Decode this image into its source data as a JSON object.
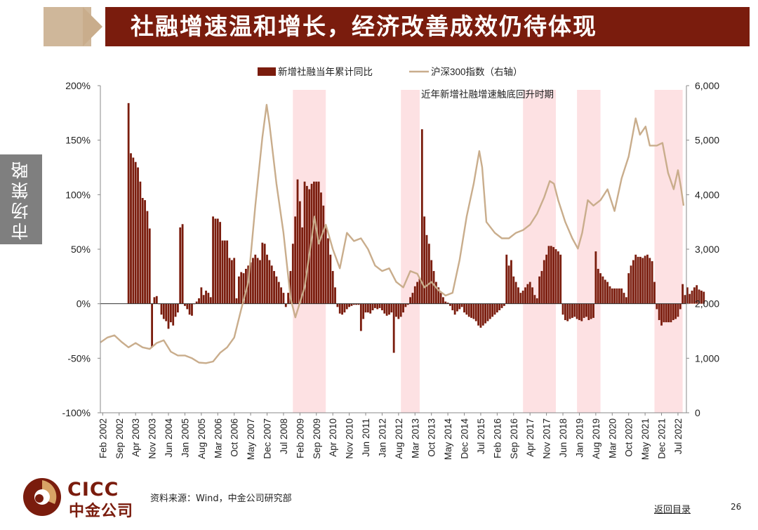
{
  "header": {
    "title": "社融增速温和增长，经济改善成效仍待体现"
  },
  "sidebar": {
    "tab_label": "市场策略"
  },
  "footer": {
    "logo_en": "CICC",
    "logo_cn": "中金公司",
    "source": "资料来源：Wind，中金公司研究部",
    "back_link": "返回目录",
    "page_number": "26"
  },
  "colors": {
    "bar": "#7a1c0d",
    "line": "#c9ad8c",
    "shade": "#fde1e3",
    "title_bg": "#7a1c0d"
  },
  "chart_data": {
    "type": "bar",
    "title": "",
    "legend": [
      {
        "name": "新增社融当年累计同比",
        "kind": "bar"
      },
      {
        "name": "沪深300指数（右轴）",
        "kind": "line"
      },
      {
        "name": "近年新增社融增速触底回升时期",
        "kind": "shade"
      }
    ],
    "legend_position": "top",
    "left_axis": {
      "min": -100,
      "max": 200,
      "step": 50,
      "ticks": [
        "-100%",
        "-50%",
        "0%",
        "50%",
        "100%",
        "150%",
        "200%"
      ]
    },
    "right_axis": {
      "min": 0,
      "max": 6000,
      "step": 1000,
      "ticks": [
        "0",
        "1,000",
        "2,000",
        "3,000",
        "4,000",
        "5,000",
        "6,000"
      ]
    },
    "x_labels": [
      "Feb 2002",
      "Sep 2002",
      "Apr 2003",
      "Nov 2003",
      "Jun 2004",
      "Jan 2005",
      "Aug 2005",
      "Mar 2006",
      "Oct 2006",
      "May 2007",
      "Dec 2007",
      "Jul 2008",
      "Feb 2009",
      "Sep 2009",
      "Apr 2010",
      "Nov 2010",
      "Jun 2011",
      "Jan 2012",
      "Aug 2012",
      "Mar 2013",
      "Oct 2013",
      "May 2014",
      "Dec 2014",
      "Jul 2015",
      "Feb 2016",
      "Sep 2016",
      "Apr 2017",
      "Nov 2017",
      "Jun 2018",
      "Jan 2019",
      "Aug 2019",
      "Mar 2020",
      "Oct 2020",
      "May 2021",
      "Dec 2021",
      "Jul 2022"
    ],
    "shaded_periods": [
      [
        "2008-11",
        "2009-12"
      ],
      [
        "2012-09",
        "2013-04"
      ],
      [
        "2017-01",
        "2018-02"
      ],
      [
        "2018-12",
        "2019-09"
      ],
      [
        "2021-09",
        "2022-08"
      ]
    ],
    "bar_start": "2003-01",
    "bar_values": [
      184,
      138,
      134,
      130,
      125,
      112,
      97,
      95,
      85,
      69,
      -40,
      6,
      7,
      0,
      -10,
      -14,
      -16,
      -23,
      -17,
      -20,
      -12,
      -8,
      70,
      73,
      -2,
      -5,
      -10,
      -11,
      0,
      2,
      5,
      15,
      8,
      12,
      10,
      6,
      80,
      78,
      78,
      75,
      58,
      58,
      58,
      42,
      40,
      42,
      5,
      25,
      29,
      28,
      32,
      35,
      38,
      42,
      45,
      42,
      40,
      56,
      55,
      45,
      40,
      35,
      30,
      25,
      20,
      15,
      10,
      -3,
      10,
      30,
      55,
      80,
      114,
      94,
      70,
      112,
      108,
      105,
      110,
      112,
      112,
      112,
      102,
      90,
      70,
      60,
      45,
      30,
      15,
      -3,
      -9,
      -10,
      -8,
      -5,
      -3,
      -2,
      -1,
      -1,
      -1,
      -25,
      -14,
      -8,
      -8,
      -9,
      -6,
      -4,
      -5,
      -4,
      -6,
      -9,
      -11,
      -10,
      -8,
      -45,
      -12,
      -14,
      -12,
      -8,
      -3,
      -1,
      6,
      10,
      16,
      20,
      23,
      160,
      80,
      63,
      55,
      40,
      30,
      20,
      15,
      10,
      6,
      2,
      1,
      -2,
      -6,
      -10,
      -7,
      -5,
      -3,
      -8,
      -10,
      -12,
      -13,
      -14,
      -16,
      -20,
      -22,
      -20,
      -18,
      -16,
      -14,
      -12,
      -10,
      -8,
      -6,
      -4,
      -2,
      45,
      35,
      40,
      25,
      20,
      15,
      10,
      12,
      15,
      18,
      20,
      15,
      8,
      5,
      25,
      30,
      40,
      45,
      53,
      53,
      52,
      50,
      48,
      45,
      -10,
      -15,
      -16,
      -14,
      -13,
      -12,
      -14,
      -15,
      -16,
      -13,
      -12,
      -15,
      -14,
      -13,
      48,
      32,
      28,
      25,
      22,
      20,
      16,
      14,
      14,
      14,
      14,
      14,
      10,
      6,
      28,
      35,
      40,
      45,
      43,
      43,
      42,
      44,
      45,
      42,
      39,
      20,
      -5,
      -15,
      -20,
      -17,
      -17,
      -17,
      -17,
      -15,
      -14,
      -12,
      -5,
      18,
      8,
      15,
      9,
      12,
      15,
      17,
      13,
      12,
      11
    ],
    "index_points": [
      [
        2002.0,
        1290
      ],
      [
        2002.25,
        1380
      ],
      [
        2002.5,
        1420
      ],
      [
        2002.75,
        1300
      ],
      [
        2003.0,
        1200
      ],
      [
        2003.25,
        1280
      ],
      [
        2003.5,
        1200
      ],
      [
        2003.75,
        1170
      ],
      [
        2004.0,
        1280
      ],
      [
        2004.25,
        1330
      ],
      [
        2004.5,
        1120
      ],
      [
        2004.75,
        1050
      ],
      [
        2005.0,
        1050
      ],
      [
        2005.25,
        1000
      ],
      [
        2005.5,
        920
      ],
      [
        2005.75,
        910
      ],
      [
        2006.0,
        940
      ],
      [
        2006.25,
        1100
      ],
      [
        2006.5,
        1200
      ],
      [
        2006.75,
        1380
      ],
      [
        2007.0,
        1900
      ],
      [
        2007.25,
        2400
      ],
      [
        2007.5,
        3800
      ],
      [
        2007.75,
        5050
      ],
      [
        2007.9,
        5650
      ],
      [
        2008.0,
        5300
      ],
      [
        2008.25,
        4200
      ],
      [
        2008.5,
        3300
      ],
      [
        2008.75,
        2100
      ],
      [
        2008.92,
        1750
      ],
      [
        2009.25,
        2300
      ],
      [
        2009.5,
        3200
      ],
      [
        2009.6,
        3600
      ],
      [
        2009.75,
        3100
      ],
      [
        2010.0,
        3450
      ],
      [
        2010.25,
        3000
      ],
      [
        2010.5,
        2650
      ],
      [
        2010.75,
        3300
      ],
      [
        2011.0,
        3150
      ],
      [
        2011.25,
        3200
      ],
      [
        2011.5,
        3000
      ],
      [
        2011.75,
        2700
      ],
      [
        2012.0,
        2600
      ],
      [
        2012.25,
        2650
      ],
      [
        2012.5,
        2400
      ],
      [
        2012.75,
        2300
      ],
      [
        2013.0,
        2600
      ],
      [
        2013.25,
        2550
      ],
      [
        2013.5,
        2300
      ],
      [
        2013.75,
        2400
      ],
      [
        2014.0,
        2250
      ],
      [
        2014.25,
        2150
      ],
      [
        2014.5,
        2200
      ],
      [
        2014.75,
        2800
      ],
      [
        2015.0,
        3600
      ],
      [
        2015.25,
        4200
      ],
      [
        2015.45,
        4800
      ],
      [
        2015.55,
        4500
      ],
      [
        2015.7,
        3500
      ],
      [
        2016.0,
        3300
      ],
      [
        2016.25,
        3200
      ],
      [
        2016.5,
        3200
      ],
      [
        2016.75,
        3300
      ],
      [
        2017.0,
        3350
      ],
      [
        2017.25,
        3450
      ],
      [
        2017.5,
        3650
      ],
      [
        2017.75,
        3950
      ],
      [
        2017.95,
        4250
      ],
      [
        2018.1,
        4200
      ],
      [
        2018.25,
        3900
      ],
      [
        2018.5,
        3500
      ],
      [
        2018.75,
        3200
      ],
      [
        2018.95,
        3010
      ],
      [
        2019.1,
        3300
      ],
      [
        2019.3,
        3900
      ],
      [
        2019.5,
        3800
      ],
      [
        2019.75,
        3900
      ],
      [
        2020.0,
        4100
      ],
      [
        2020.25,
        3700
      ],
      [
        2020.5,
        4300
      ],
      [
        2020.75,
        4700
      ],
      [
        2021.0,
        5400
      ],
      [
        2021.15,
        5100
      ],
      [
        2021.35,
        5250
      ],
      [
        2021.5,
        4900
      ],
      [
        2021.75,
        4900
      ],
      [
        2021.95,
        4950
      ],
      [
        2022.15,
        4400
      ],
      [
        2022.35,
        4100
      ],
      [
        2022.5,
        4450
      ],
      [
        2022.6,
        4150
      ],
      [
        2022.7,
        3800
      ]
    ]
  }
}
